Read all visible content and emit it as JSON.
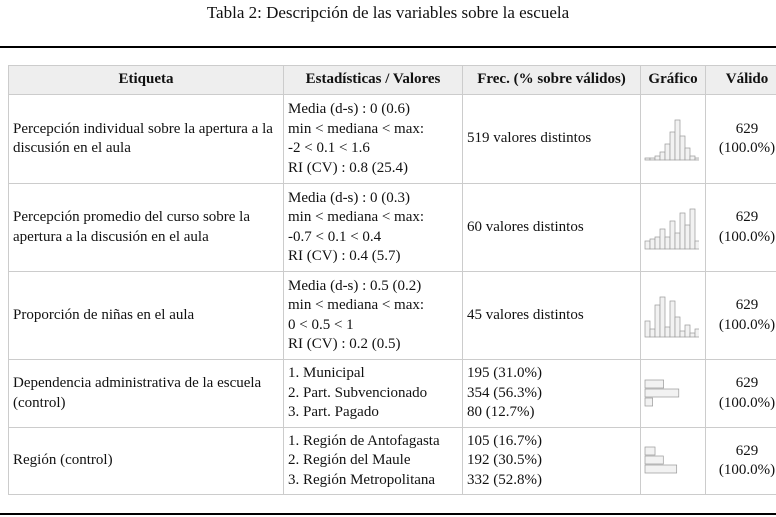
{
  "header": {
    "title": "Tabla 2: Descripción de las variables sobre la escuela"
  },
  "table": {
    "columns": [
      "Etiqueta",
      "Estadísticas / Valores",
      "Frec. (% sobre válidos)",
      "Gráfico",
      "Válido"
    ],
    "rows": [
      {
        "label": "Percepción individual sobre la apertura a la discusión en el aula",
        "stats": [
          "Media (d-s) : 0 (0.6)",
          "min < mediana < max:",
          "-2 < 0.1 < 1.6",
          "RI (CV) : 0.8 (25.4)"
        ],
        "freq": [
          "519 valores distintos"
        ],
        "graph": {
          "type": "hist",
          "values": [
            1,
            1,
            2,
            4,
            8,
            14,
            20,
            12,
            6,
            2,
            1
          ]
        },
        "valid": [
          "629",
          "(100.0%)"
        ]
      },
      {
        "label": "Percepción promedio del curso sobre la apertura a la discusión en el aula",
        "stats": [
          "Media (d-s) : 0 (0.3)",
          "min < mediana < max:",
          "-0.7 < 0.1 < 0.4",
          "RI (CV) : 0.4 (5.7)"
        ],
        "freq": [
          "60 valores distintos"
        ],
        "graph": {
          "type": "hist",
          "values": [
            4,
            5,
            6,
            10,
            6,
            14,
            8,
            18,
            12,
            20,
            4
          ]
        },
        "valid": [
          "629",
          "(100.0%)"
        ]
      },
      {
        "label": "Proporción de niñas en el aula",
        "stats": [
          "Media (d-s) : 0.5 (0.2)",
          "min < mediana < max:",
          "0 < 0.5 < 1",
          "RI (CV) : 0.2 (0.5)"
        ],
        "freq": [
          "45 valores distintos"
        ],
        "graph": {
          "type": "hist",
          "values": [
            8,
            4,
            16,
            20,
            5,
            18,
            10,
            3,
            6,
            2,
            4
          ]
        },
        "valid": [
          "629",
          "(100.0%)"
        ]
      },
      {
        "label": "Dependencia administrativa de la escuela (control)",
        "stats": [
          "1. Municipal",
          "2. Part. Subvencionado",
          "3. Part. Pagado"
        ],
        "freq": [
          "195 (31.0%)",
          "354 (56.3%)",
          "80 (12.7%)"
        ],
        "graph": {
          "type": "bar",
          "values": [
            31.0,
            56.3,
            12.7
          ]
        },
        "valid": [
          "629",
          "(100.0%)"
        ]
      },
      {
        "label": "Región (control)",
        "stats": [
          "1. Región de Antofagasta",
          "2. Región del Maule",
          "3. Región Metropolitana"
        ],
        "freq": [
          "105 (16.7%)",
          "192 (30.5%)",
          "332 (52.8%)"
        ],
        "graph": {
          "type": "bar",
          "values": [
            16.7,
            30.5,
            52.8
          ]
        },
        "valid": [
          "629",
          "(100.0%)"
        ]
      }
    ]
  }
}
